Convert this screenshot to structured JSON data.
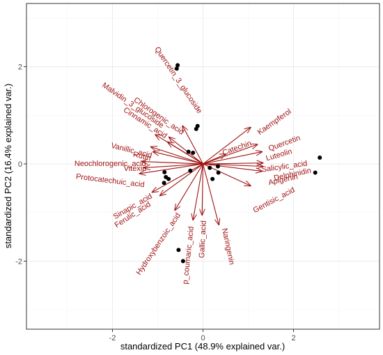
{
  "chart_data": {
    "type": "scatter",
    "subtype": "pca-biplot",
    "title": "",
    "xlabel": "standardized PC1 (48.9% explained var.)",
    "ylabel": "standardized PC2 (16.4% explained var.)",
    "xlim": [
      -3.9,
      3.9
    ],
    "ylim": [
      -3.4,
      3.3
    ],
    "xticks": [
      -2,
      0,
      2
    ],
    "xtick_labels": [
      "-2",
      "0",
      "2"
    ],
    "yticks": [
      -2,
      0,
      2
    ],
    "ytick_labels": [
      "-2",
      "0",
      "2"
    ],
    "grid": true,
    "theme": "bw",
    "arrow_color": "#9e1010",
    "point_color": "#000000",
    "grid_color": "#ebebeb",
    "scores": [
      {
        "x": -0.56,
        "y": 2.03
      },
      {
        "x": -0.58,
        "y": 1.96
      },
      {
        "x": -0.12,
        "y": 0.78
      },
      {
        "x": -0.15,
        "y": 0.72
      },
      {
        "x": -0.32,
        "y": 0.25
      },
      {
        "x": -0.22,
        "y": 0.23
      },
      {
        "x": -0.85,
        "y": -0.17
      },
      {
        "x": -0.82,
        "y": -0.27
      },
      {
        "x": -0.76,
        "y": -0.31
      },
      {
        "x": -0.86,
        "y": -0.39
      },
      {
        "x": -0.28,
        "y": -0.14
      },
      {
        "x": 0.15,
        "y": -0.08
      },
      {
        "x": 0.33,
        "y": -0.05
      },
      {
        "x": 0.34,
        "y": -0.18
      },
      {
        "x": 0.21,
        "y": -0.31
      },
      {
        "x": 2.58,
        "y": 0.13
      },
      {
        "x": 2.48,
        "y": -0.18
      },
      {
        "x": -0.54,
        "y": -1.77
      },
      {
        "x": -0.44,
        "y": -2.0
      }
    ],
    "loadings": [
      {
        "name": "Quercetin_3_glucoside",
        "x": -0.45,
        "y": 0.78,
        "label_x": -0.55,
        "label_y": 1.72,
        "angle": 56
      },
      {
        "name": "Malvidin_3_glucoside",
        "x": -1.05,
        "y": 0.6,
        "label_x": -1.55,
        "label_y": 1.2,
        "angle": 35
      },
      {
        "name": "Chlorogenic_acid",
        "x": -0.75,
        "y": 0.55,
        "label_x": -0.98,
        "label_y": 0.98,
        "angle": 35
      },
      {
        "name": "Cinnamic_acid",
        "x": -0.78,
        "y": 0.45,
        "label_x": -1.28,
        "label_y": 0.84,
        "angle": 33
      },
      {
        "name": "Kaempferol",
        "x": 1.05,
        "y": 0.75,
        "label_x": 1.58,
        "label_y": 0.86,
        "angle": -35
      },
      {
        "name": "Catechin",
        "x": 0.5,
        "y": 0.2,
        "label_x": 0.75,
        "label_y": 0.32,
        "angle": -20
      },
      {
        "name": "Quercetin",
        "x": 1.2,
        "y": 0.4,
        "label_x": 1.8,
        "label_y": 0.42,
        "angle": -20
      },
      {
        "name": "Luteolin",
        "x": 1.3,
        "y": 0.25,
        "label_x": 1.68,
        "label_y": 0.18,
        "angle": -16
      },
      {
        "name": "Salicylic_acid",
        "x": 1.32,
        "y": 0.02,
        "label_x": 1.8,
        "label_y": -0.06,
        "angle": -8
      },
      {
        "name": "Delphinidin",
        "x": 1.32,
        "y": -0.05,
        "label_x": 1.98,
        "label_y": -0.22,
        "angle": -12
      },
      {
        "name": "Apigenin",
        "x": 1.3,
        "y": -0.15,
        "label_x": 1.77,
        "label_y": -0.33,
        "angle": -12
      },
      {
        "name": "Gentisic_acid",
        "x": 1.05,
        "y": -0.45,
        "label_x": 1.57,
        "label_y": -0.75,
        "angle": -28
      },
      {
        "name": "Naringenin",
        "x": 0.35,
        "y": -1.25,
        "label_x": 0.55,
        "label_y": -1.7,
        "angle": 78
      },
      {
        "name": "Gallic_acid",
        "x": -0.02,
        "y": -1.05,
        "label_x": -0.0,
        "label_y": -1.55,
        "angle": -87
      },
      {
        "name": "p_coumaric_acid",
        "x": -0.22,
        "y": -1.15,
        "label_x": -0.32,
        "label_y": -1.88,
        "angle": -84
      },
      {
        "name": "Hydroxybenzoic_acid",
        "x": -0.62,
        "y": -0.95,
        "label_x": -0.98,
        "label_y": -1.65,
        "angle": -56
      },
      {
        "name": "Ferulic_acid",
        "x": -0.95,
        "y": -0.65,
        "label_x": -1.55,
        "label_y": -1.05,
        "angle": -33
      },
      {
        "name": "Sinapic_acid",
        "x": -1.12,
        "y": -0.58,
        "label_x": -1.55,
        "label_y": -0.88,
        "angle": -30
      },
      {
        "name": "Vanillic_acid",
        "x": -1.15,
        "y": 0.35,
        "label_x": -1.58,
        "label_y": 0.27,
        "angle": 14
      },
      {
        "name": "Rutin",
        "x": -1.1,
        "y": 0.25,
        "label_x": -1.35,
        "label_y": 0.15,
        "angle": 14
      },
      {
        "name": "Neochlorogenic_acid",
        "x": -1.35,
        "y": 0.05,
        "label_x": -2.05,
        "label_y": 0.0,
        "angle": 0
      },
      {
        "name": "Vitexin",
        "x": -1.3,
        "y": -0.08,
        "label_x": -1.5,
        "label_y": -0.1,
        "angle": 0
      },
      {
        "name": "Protocatechuic_acid",
        "x": -1.4,
        "y": -0.2,
        "label_x": -2.05,
        "label_y": -0.35,
        "angle": 7
      }
    ]
  }
}
